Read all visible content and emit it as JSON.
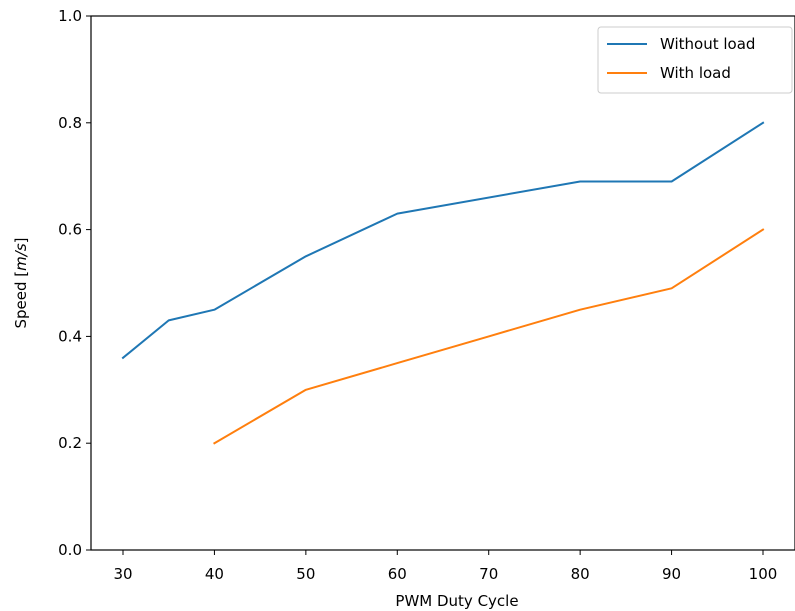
{
  "chart_data": {
    "type": "line",
    "title": "",
    "xlabel": "PWM Duty Cycle",
    "ylabel_text": "Speed [",
    "ylabel_unit": "m/s",
    "ylabel_close": "]",
    "xlim": [
      26.5,
      103.5
    ],
    "ylim": [
      0,
      1
    ],
    "xticks": [
      30,
      40,
      50,
      60,
      70,
      80,
      90,
      100
    ],
    "yticks": [
      0.0,
      0.2,
      0.4,
      0.6,
      0.8,
      1.0
    ],
    "xtick_labels": [
      "30",
      "40",
      "50",
      "60",
      "70",
      "80",
      "90",
      "100"
    ],
    "ytick_labels": [
      "0.0",
      "0.2",
      "0.4",
      "0.6",
      "0.8",
      "1.0"
    ],
    "grid": false,
    "legend_position": "upper right",
    "series": [
      {
        "name": "Without load",
        "color": "#1f77b4",
        "x": [
          30,
          35,
          40,
          50,
          60,
          80,
          90,
          100
        ],
        "y": [
          0.36,
          0.43,
          0.45,
          0.55,
          0.63,
          0.69,
          0.69,
          0.8
        ]
      },
      {
        "name": "With load",
        "color": "#ff7f0e",
        "x": [
          40,
          50,
          60,
          70,
          80,
          90,
          100
        ],
        "y": [
          0.2,
          0.3,
          0.35,
          0.4,
          0.45,
          0.49,
          0.6
        ]
      }
    ]
  }
}
